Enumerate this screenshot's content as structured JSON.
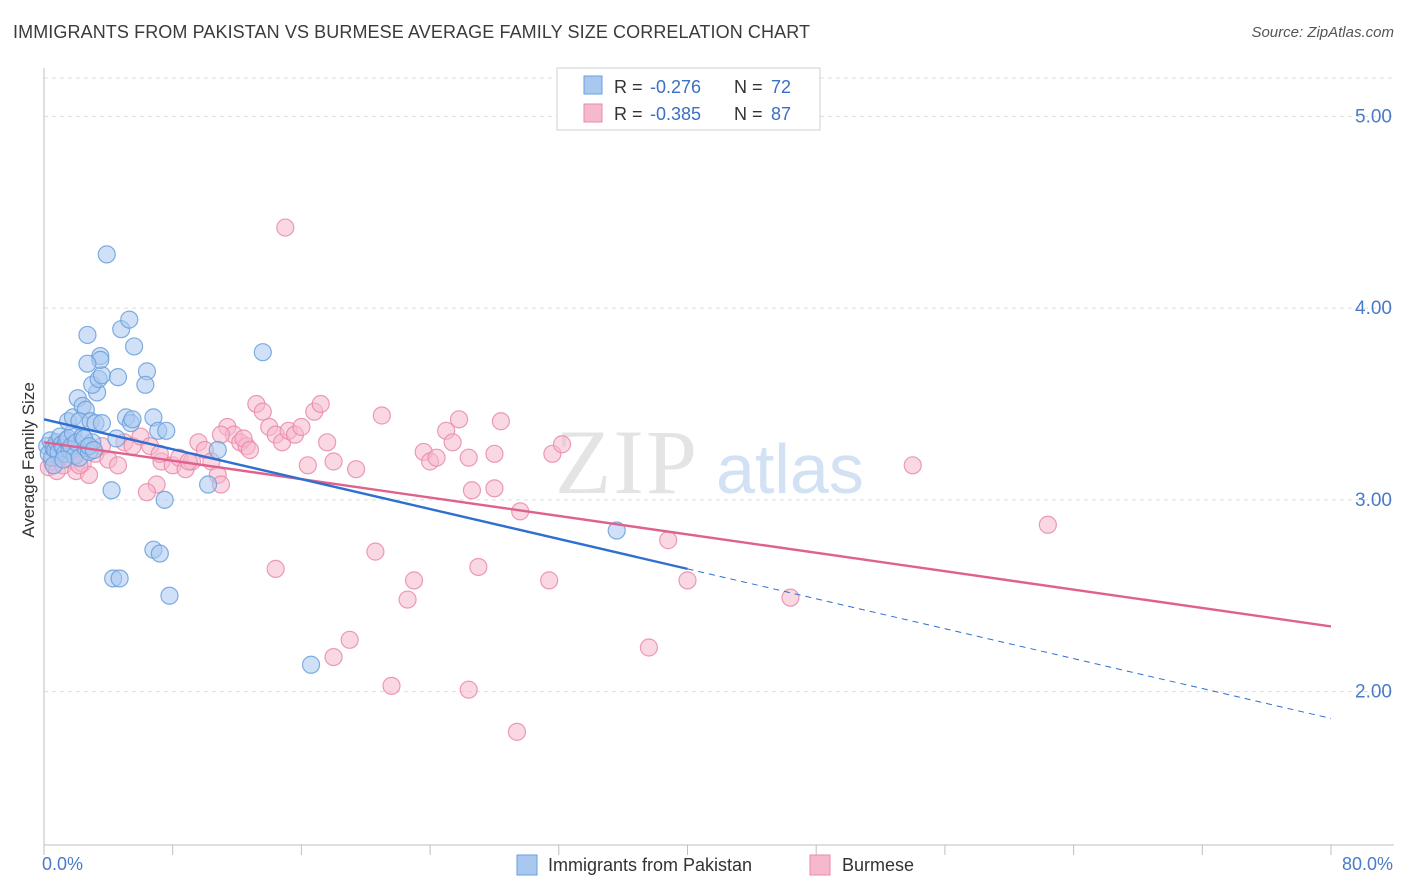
{
  "title": "IMMIGRANTS FROM PAKISTAN VS BURMESE AVERAGE FAMILY SIZE CORRELATION CHART",
  "source": "Source: ZipAtlas.com",
  "watermark": {
    "zip": "ZIP",
    "atlas": "atlas"
  },
  "colors": {
    "blue_fill": "#a9c8f0",
    "blue_stroke": "#6a9fdc",
    "blue_line": "#2f6fcf",
    "pink_fill": "#f6b8cc",
    "pink_stroke": "#e98aaa",
    "pink_line": "#e0608e",
    "axis_text": "#4a7bc8",
    "grid": "#dcdcdc"
  },
  "legend_top": [
    {
      "r_label": "R = ",
      "r_value": "-0.276",
      "n_label": "N = ",
      "n_value": "72"
    },
    {
      "r_label": "R = ",
      "r_value": "-0.385",
      "n_label": "N = ",
      "n_value": "87"
    }
  ],
  "legend_bottom": [
    "Immigrants from Pakistan",
    "Burmese"
  ],
  "chart_data": {
    "type": "scatter",
    "title": "IMMIGRANTS FROM PAKISTAN VS BURMESE AVERAGE FAMILY SIZE CORRELATION CHART",
    "xlabel": "",
    "ylabel": "Average Family Size",
    "xlim": [
      0,
      80
    ],
    "ylim": [
      1.2,
      5.2
    ],
    "x_tick_labels": [
      "0.0%",
      "80.0%"
    ],
    "y_ticks": [
      2.0,
      3.0,
      4.0,
      5.0
    ],
    "y_tick_labels": [
      "2.00",
      "3.00",
      "4.00",
      "5.00"
    ],
    "grid": true,
    "legend_position": "top-center",
    "series": [
      {
        "name": "Immigrants from Pakistan",
        "r": -0.276,
        "n": 72,
        "trend": {
          "x": [
            0,
            40
          ],
          "y": [
            3.42,
            2.64
          ]
        },
        "trend_dashed": {
          "x": [
            40,
            80
          ],
          "y": [
            2.64,
            1.86
          ]
        },
        "points": [
          [
            0.2,
            3.28
          ],
          [
            0.3,
            3.24
          ],
          [
            0.4,
            3.31
          ],
          [
            0.5,
            3.22
          ],
          [
            0.6,
            3.27
          ],
          [
            0.7,
            3.26
          ],
          [
            0.8,
            3.3
          ],
          [
            0.9,
            3.25
          ],
          [
            1.0,
            3.33
          ],
          [
            1.1,
            3.29
          ],
          [
            1.2,
            3.27
          ],
          [
            1.3,
            3.24
          ],
          [
            1.4,
            3.31
          ],
          [
            1.5,
            3.32
          ],
          [
            1.6,
            3.26
          ],
          [
            1.7,
            3.28
          ],
          [
            1.8,
            3.35
          ],
          [
            1.9,
            3.23
          ],
          [
            2.0,
            3.3
          ],
          [
            2.2,
            3.22
          ],
          [
            2.4,
            3.33
          ],
          [
            2.6,
            3.27
          ],
          [
            2.8,
            3.25
          ],
          [
            3.0,
            3.3
          ],
          [
            1.5,
            3.41
          ],
          [
            1.8,
            3.43
          ],
          [
            2.1,
            3.53
          ],
          [
            2.4,
            3.49
          ],
          [
            2.6,
            3.47
          ],
          [
            2.2,
            3.41
          ],
          [
            2.9,
            3.41
          ],
          [
            3.2,
            3.4
          ],
          [
            3.6,
            3.4
          ],
          [
            2.5,
            3.32
          ],
          [
            2.8,
            3.28
          ],
          [
            3.1,
            3.26
          ],
          [
            4.5,
            3.32
          ],
          [
            3.3,
            3.56
          ],
          [
            3.0,
            3.6
          ],
          [
            3.4,
            3.63
          ],
          [
            3.6,
            3.65
          ],
          [
            3.5,
            3.75
          ],
          [
            3.5,
            3.73
          ],
          [
            2.7,
            3.71
          ],
          [
            4.6,
            3.64
          ],
          [
            6.4,
            3.67
          ],
          [
            6.3,
            3.6
          ],
          [
            5.6,
            3.8
          ],
          [
            2.7,
            3.86
          ],
          [
            4.8,
            3.89
          ],
          [
            5.3,
            3.94
          ],
          [
            3.9,
            4.28
          ],
          [
            5.1,
            3.43
          ],
          [
            5.4,
            3.4
          ],
          [
            6.8,
            3.43
          ],
          [
            7.1,
            3.36
          ],
          [
            7.6,
            3.36
          ],
          [
            10.8,
            3.26
          ],
          [
            10.2,
            3.08
          ],
          [
            5.5,
            3.42
          ],
          [
            4.2,
            3.05
          ],
          [
            4.3,
            2.59
          ],
          [
            4.7,
            2.59
          ],
          [
            6.8,
            2.74
          ],
          [
            7.2,
            2.72
          ],
          [
            7.5,
            3.0
          ],
          [
            7.8,
            2.5
          ],
          [
            13.6,
            3.77
          ],
          [
            16.6,
            2.14
          ],
          [
            35.6,
            2.84
          ],
          [
            0.6,
            3.18
          ],
          [
            1.2,
            3.21
          ]
        ]
      },
      {
        "name": "Burmese",
        "r": -0.385,
        "n": 87,
        "trend": {
          "x": [
            0,
            80
          ],
          "y": [
            3.3,
            2.34
          ]
        },
        "points": [
          [
            0.3,
            3.17
          ],
          [
            0.5,
            3.2
          ],
          [
            0.8,
            3.15
          ],
          [
            1.0,
            3.22
          ],
          [
            1.2,
            3.18
          ],
          [
            1.4,
            3.26
          ],
          [
            1.7,
            3.21
          ],
          [
            2.0,
            3.15
          ],
          [
            2.4,
            3.19
          ],
          [
            2.8,
            3.13
          ],
          [
            3.2,
            3.24
          ],
          [
            3.6,
            3.28
          ],
          [
            4.0,
            3.21
          ],
          [
            4.6,
            3.18
          ],
          [
            5.0,
            3.3
          ],
          [
            5.5,
            3.28
          ],
          [
            6.0,
            3.33
          ],
          [
            6.6,
            3.28
          ],
          [
            7.0,
            3.08
          ],
          [
            6.4,
            3.04
          ],
          [
            7.3,
            3.2
          ],
          [
            8.0,
            3.18
          ],
          [
            8.4,
            3.22
          ],
          [
            8.8,
            3.16
          ],
          [
            9.2,
            3.2
          ],
          [
            9.6,
            3.3
          ],
          [
            10.0,
            3.26
          ],
          [
            10.4,
            3.2
          ],
          [
            10.8,
            3.13
          ],
          [
            11.0,
            3.08
          ],
          [
            11.4,
            3.38
          ],
          [
            11.8,
            3.34
          ],
          [
            12.2,
            3.3
          ],
          [
            12.6,
            3.28
          ],
          [
            12.4,
            3.32
          ],
          [
            12.8,
            3.26
          ],
          [
            13.2,
            3.5
          ],
          [
            13.6,
            3.46
          ],
          [
            14.0,
            3.38
          ],
          [
            14.4,
            3.34
          ],
          [
            14.8,
            3.3
          ],
          [
            15.2,
            3.36
          ],
          [
            15.6,
            3.34
          ],
          [
            16.0,
            3.38
          ],
          [
            16.4,
            3.18
          ],
          [
            16.8,
            3.46
          ],
          [
            17.2,
            3.5
          ],
          [
            17.6,
            3.3
          ],
          [
            18.0,
            3.2
          ],
          [
            19.4,
            3.16
          ],
          [
            20.6,
            2.73
          ],
          [
            21.0,
            3.44
          ],
          [
            22.6,
            2.48
          ],
          [
            23.0,
            2.58
          ],
          [
            23.6,
            3.25
          ],
          [
            24.0,
            3.2
          ],
          [
            24.4,
            3.22
          ],
          [
            25.0,
            3.36
          ],
          [
            25.8,
            3.42
          ],
          [
            26.4,
            3.22
          ],
          [
            25.4,
            3.3
          ],
          [
            26.6,
            3.05
          ],
          [
            28.0,
            3.06
          ],
          [
            28.0,
            3.24
          ],
          [
            27.0,
            2.65
          ],
          [
            28.4,
            3.41
          ],
          [
            29.6,
            2.94
          ],
          [
            31.4,
            2.58
          ],
          [
            31.6,
            3.24
          ],
          [
            32.2,
            3.29
          ],
          [
            37.6,
            2.23
          ],
          [
            38.8,
            2.79
          ],
          [
            40.0,
            2.58
          ],
          [
            46.4,
            2.49
          ],
          [
            54.0,
            3.18
          ],
          [
            62.4,
            2.87
          ],
          [
            14.4,
            2.64
          ],
          [
            18.0,
            2.18
          ],
          [
            19.0,
            2.27
          ],
          [
            21.6,
            2.03
          ],
          [
            26.4,
            2.01
          ],
          [
            29.4,
            1.79
          ],
          [
            11.0,
            3.34
          ],
          [
            7.2,
            3.24
          ],
          [
            2.2,
            3.18
          ],
          [
            9.0,
            3.2
          ],
          [
            15.0,
            4.42
          ]
        ]
      }
    ]
  }
}
